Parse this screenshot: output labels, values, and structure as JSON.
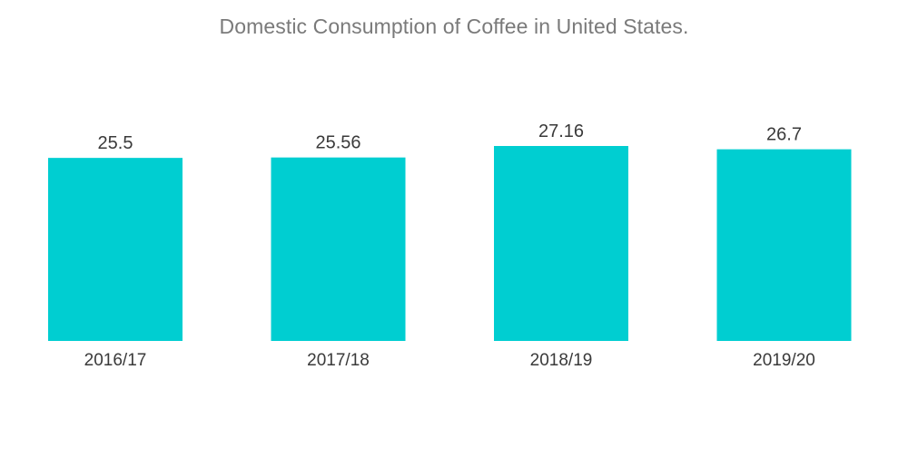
{
  "chart_data": {
    "type": "bar",
    "title": "Domestic Consumption of Coffee in United States.",
    "categories": [
      "2016/17",
      "2017/18",
      "2018/19",
      "2019/20"
    ],
    "values": [
      25.5,
      25.56,
      27.16,
      26.7
    ],
    "value_labels": [
      "25.5",
      "25.56",
      "27.16",
      "26.7"
    ],
    "xlabel": "",
    "ylabel": "",
    "ylim": [
      0,
      27.16
    ],
    "grid": false,
    "legend": "none",
    "bar_color": "#00CED1"
  }
}
